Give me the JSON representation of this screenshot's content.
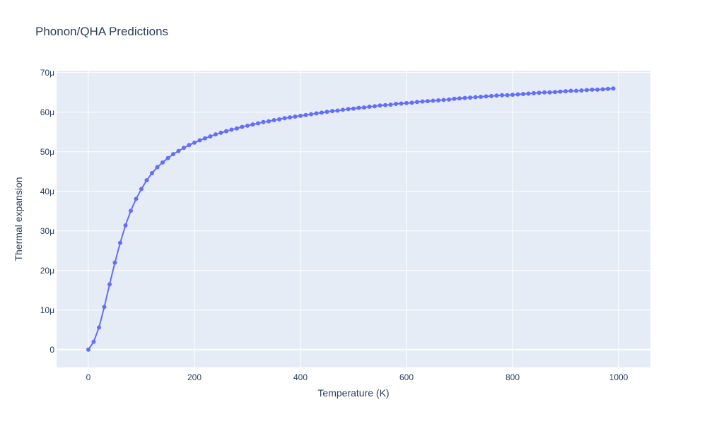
{
  "chart_data": {
    "type": "line",
    "title": "Phonon/QHA Predictions",
    "xlabel": "Temperature (K)",
    "ylabel": "Thermal expansion",
    "xlim": [
      -60,
      1060
    ],
    "ylim": [
      -4.5e-06,
      7.05e-05
    ],
    "x_ticks": [
      0,
      200,
      400,
      600,
      800,
      1000
    ],
    "x_tick_labels": [
      "0",
      "200",
      "400",
      "600",
      "800",
      "1000"
    ],
    "y_ticks": [
      0,
      1e-05,
      2e-05,
      3e-05,
      4e-05,
      5e-05,
      6e-05,
      7e-05
    ],
    "y_tick_labels": [
      "0",
      "10μ",
      "20μ",
      "30μ",
      "40μ",
      "50μ",
      "60μ",
      "70μ"
    ],
    "grid": true,
    "line_color": "#636efa",
    "plot_bg": "#e5ecf6",
    "series": [
      {
        "mode": "lines+markers",
        "x": [
          0,
          10,
          20,
          30,
          40,
          50,
          60,
          70,
          80,
          90,
          100,
          110,
          120,
          130,
          140,
          150,
          160,
          170,
          180,
          190,
          200,
          210,
          220,
          230,
          240,
          250,
          260,
          270,
          280,
          290,
          300,
          310,
          320,
          330,
          340,
          350,
          360,
          370,
          380,
          390,
          400,
          410,
          420,
          430,
          440,
          450,
          460,
          470,
          480,
          490,
          500,
          510,
          520,
          530,
          540,
          550,
          560,
          570,
          580,
          590,
          600,
          610,
          620,
          630,
          640,
          650,
          660,
          670,
          680,
          690,
          700,
          710,
          720,
          730,
          740,
          750,
          760,
          770,
          780,
          790,
          800,
          810,
          820,
          830,
          840,
          850,
          860,
          870,
          880,
          890,
          900,
          910,
          920,
          930,
          940,
          950,
          960,
          970,
          980,
          990
        ],
        "y": [
          0,
          2e-06,
          5.6e-06,
          1.08e-05,
          1.65e-05,
          2.2e-05,
          2.7e-05,
          3.14e-05,
          3.51e-05,
          3.81e-05,
          4.06e-05,
          4.28e-05,
          4.46e-05,
          4.61e-05,
          4.73e-05,
          4.84e-05,
          4.94e-05,
          5.02e-05,
          5.1e-05,
          5.17e-05,
          5.23e-05,
          5.29e-05,
          5.34e-05,
          5.39e-05,
          5.44e-05,
          5.48e-05,
          5.52e-05,
          5.56e-05,
          5.59e-05,
          5.63e-05,
          5.66e-05,
          5.69e-05,
          5.72e-05,
          5.75e-05,
          5.77e-05,
          5.8e-05,
          5.82e-05,
          5.85e-05,
          5.87e-05,
          5.89e-05,
          5.91e-05,
          5.93e-05,
          5.95e-05,
          5.97e-05,
          5.99e-05,
          6.01e-05,
          6.03e-05,
          6.04e-05,
          6.06e-05,
          6.08e-05,
          6.09e-05,
          6.11e-05,
          6.12e-05,
          6.14e-05,
          6.15e-05,
          6.17e-05,
          6.18e-05,
          6.19e-05,
          6.21e-05,
          6.22e-05,
          6.23e-05,
          6.24e-05,
          6.26e-05,
          6.27e-05,
          6.28e-05,
          6.29e-05,
          6.3e-05,
          6.31e-05,
          6.32e-05,
          6.34e-05,
          6.35e-05,
          6.36e-05,
          6.37e-05,
          6.38e-05,
          6.39e-05,
          6.4e-05,
          6.41e-05,
          6.42e-05,
          6.43e-05,
          6.43e-05,
          6.44e-05,
          6.45e-05,
          6.46e-05,
          6.47e-05,
          6.48e-05,
          6.49e-05,
          6.5e-05,
          6.5e-05,
          6.51e-05,
          6.52e-05,
          6.53e-05,
          6.54e-05,
          6.54e-05,
          6.55e-05,
          6.56e-05,
          6.57e-05,
          6.57e-05,
          6.58e-05,
          6.59e-05,
          6.6e-05
        ]
      }
    ]
  }
}
